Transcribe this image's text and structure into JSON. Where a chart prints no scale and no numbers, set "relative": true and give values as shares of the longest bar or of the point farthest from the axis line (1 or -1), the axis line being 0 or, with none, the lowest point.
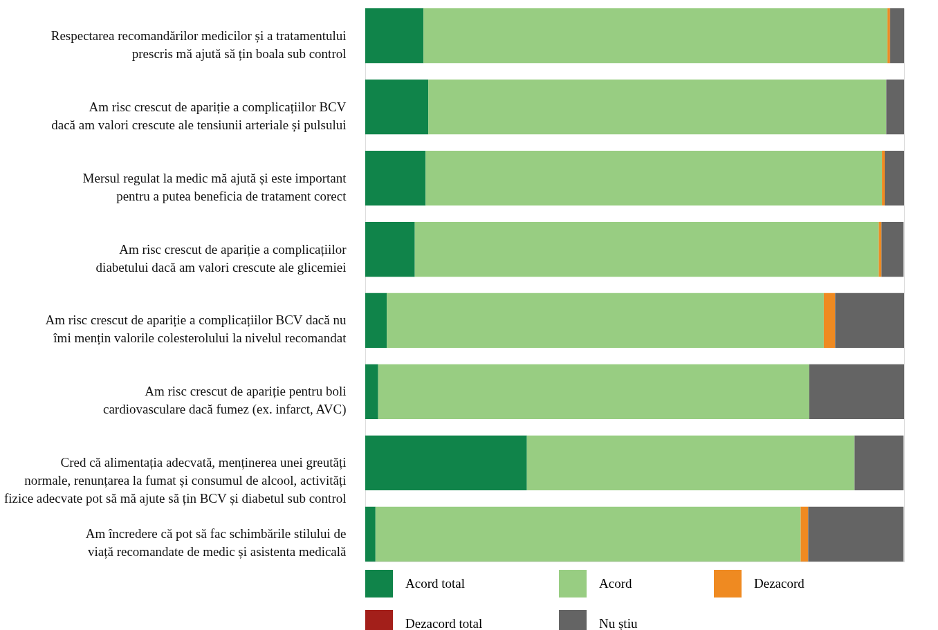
{
  "chart_data": {
    "type": "bar",
    "orientation": "horizontal",
    "stacked": true,
    "relative": true,
    "legend": "bottom",
    "categories": [
      "Respectarea recomandărilor medicilor și a tratamentului\nprescris mă ajută să țin boala sub control",
      "Am risc crescut de apariție a complicațiilor BCV\ndacă am valori crescute ale tensiunii arteriale și pulsului",
      "Mersul regulat la medic mă ajută și este important\npentru a putea beneficia de tratament corect",
      "Am risc crescut de apariție a complicațiilor\ndiabetului dacă am valori crescute ale glicemiei",
      "Am risc crescut de apariție a complicațiilor BCV dacă nu\nîmi mențin valorile colesterolului la nivelul recomandat",
      "Am risc crescut de apariție pentru boli\ncardiovasculare dacă fumez (ex. infarct, AVC)",
      "Cred că alimentația adecvată, menținerea unei greutăți\nnormale, renunțarea la fumat și consumul de alcool, activități\nfizice adecvate pot să mă ajute să țin BCV și diabetul sub control",
      "Am încredere că pot să fac schimbările stilului de\nviață recomandate de medic și asistenta medicală"
    ],
    "series": [
      {
        "name": "Acord total",
        "color": "#10844a",
        "values": [
          0.108,
          0.117,
          0.112,
          0.092,
          0.04,
          0.024,
          0.3,
          0.019
        ]
      },
      {
        "name": "Acord",
        "color": "#98cd82",
        "values": [
          0.861,
          0.85,
          0.847,
          0.861,
          0.811,
          0.8,
          0.608,
          0.789
        ]
      },
      {
        "name": "Dezacord",
        "color": "#ef8a21",
        "values": [
          0.005,
          0,
          0.005,
          0.005,
          0.021,
          0,
          0,
          0.014
        ]
      },
      {
        "name": "Dezacord total",
        "color": "#a31f1a",
        "values": [
          0,
          0,
          0,
          0,
          0,
          0,
          0,
          0
        ]
      },
      {
        "name": "Nu știu",
        "color": "#646464",
        "values": [
          0.026,
          0.033,
          0.036,
          0.041,
          0.128,
          0.176,
          0.091,
          0.177
        ]
      }
    ]
  }
}
